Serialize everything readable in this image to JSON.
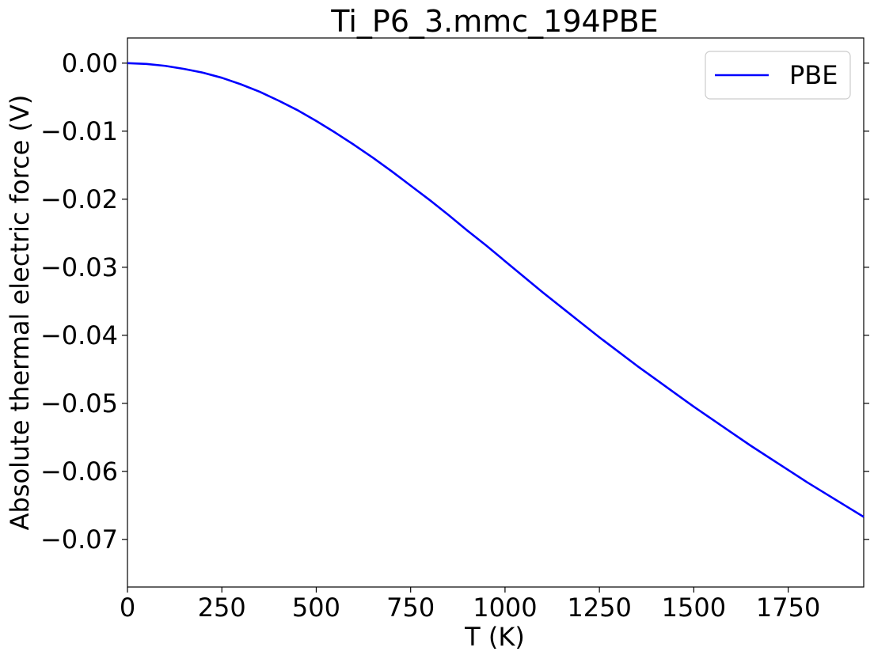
{
  "chart_data": {
    "type": "line",
    "title": "Ti_P6_3.mmc_194PBE",
    "xlabel": "T (K)",
    "ylabel": "Absolute thermal electric force (V)",
    "xlim": [
      0,
      1950
    ],
    "ylim": [
      -0.077,
      0.0037
    ],
    "xticks": [
      0,
      250,
      500,
      750,
      1000,
      1250,
      1500,
      1750
    ],
    "xtick_labels": [
      "0",
      "250",
      "500",
      "750",
      "1000",
      "1250",
      "1500",
      "1750"
    ],
    "yticks": [
      0.0,
      -0.01,
      -0.02,
      -0.03,
      -0.04,
      -0.05,
      -0.06,
      -0.07
    ],
    "ytick_labels": [
      "0.00",
      "−0.01",
      "−0.02",
      "−0.03",
      "−0.04",
      "−0.05",
      "−0.06",
      "−0.07"
    ],
    "grid": false,
    "legend_position": "top-right",
    "series": [
      {
        "name": "PBE",
        "color": "#0000ff",
        "x": [
          0,
          50,
          100,
          150,
          200,
          250,
          300,
          350,
          400,
          450,
          500,
          550,
          600,
          650,
          700,
          750,
          800,
          850,
          900,
          950,
          1000,
          1050,
          1100,
          1150,
          1200,
          1250,
          1300,
          1350,
          1400,
          1450,
          1500,
          1550,
          1600,
          1650,
          1700,
          1750,
          1800,
          1850,
          1900,
          1950
        ],
        "y": [
          0.0,
          -0.00012,
          -0.0004,
          -0.00085,
          -0.0014,
          -0.00215,
          -0.0031,
          -0.0042,
          -0.0055,
          -0.0069,
          -0.0085,
          -0.0102,
          -0.012,
          -0.0139,
          -0.0159,
          -0.018,
          -0.0201,
          -0.0223,
          -0.0246,
          -0.0268,
          -0.0291,
          -0.0314,
          -0.0337,
          -0.0359,
          -0.0381,
          -0.0403,
          -0.0424,
          -0.0445,
          -0.0465,
          -0.0485,
          -0.0505,
          -0.0524,
          -0.0543,
          -0.0562,
          -0.058,
          -0.0598,
          -0.0616,
          -0.0633,
          -0.065,
          -0.0667
        ]
      }
    ]
  }
}
